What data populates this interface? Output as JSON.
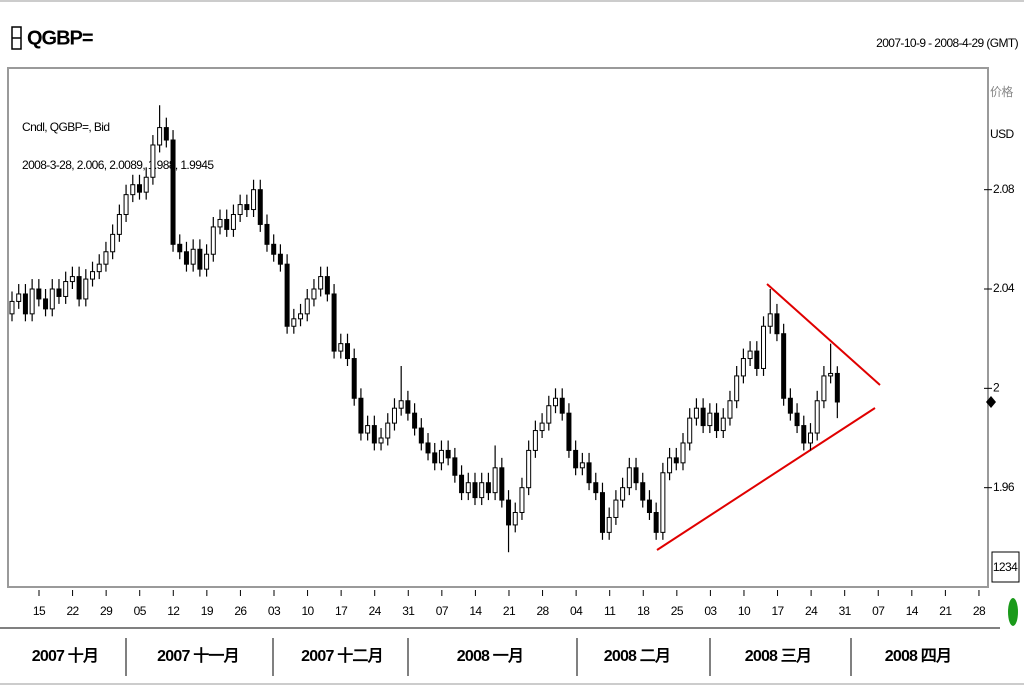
{
  "chart_data": {
    "type": "candlestick",
    "title": "QGBP=",
    "range_label": "2007-10-9 - 2008-4-29 (GMT)",
    "axis_label": "价格",
    "unit": "USD",
    "last_bar_label": "2008-3-28, 2.006, 2.0089, 1.988, 1.9945",
    "box_label": "1234",
    "ylim": [
      1.92,
      2.129
    ],
    "yticks": [
      2.08,
      2.04,
      2,
      1.96
    ],
    "x_day_labels": [
      "15",
      "22",
      "29",
      "05",
      "12",
      "19",
      "26",
      "03",
      "10",
      "17",
      "24",
      "31",
      "07",
      "14",
      "21",
      "28",
      "04",
      "11",
      "18",
      "25",
      "03",
      "10",
      "17",
      "24",
      "31",
      "07",
      "14",
      "21",
      "28"
    ],
    "x_month_labels": [
      "2007 十月",
      "2007 十一月",
      "2007 十二月",
      "2008 一月",
      "2008 二月",
      "2008 三月",
      "2008 四月"
    ],
    "series": [
      {
        "name": "Cndl, QGBP=, Bid",
        "up_color": "#ffffff",
        "down_color": "#000000",
        "open": [
          2.03,
          2.035,
          2.038,
          2.03,
          2.04,
          2.036,
          2.032,
          2.04,
          2.037,
          2.043,
          2.045,
          2.036,
          2.044,
          2.047,
          2.05,
          2.055,
          2.062,
          2.07,
          2.078,
          2.082,
          2.079,
          2.085,
          2.098,
          2.105,
          2.1,
          2.058,
          2.055,
          2.05,
          2.056,
          2.048,
          2.054,
          2.065,
          2.068,
          2.064,
          2.07,
          2.074,
          2.072,
          2.08,
          2.066,
          2.058,
          2.054,
          2.05,
          2.025,
          2.028,
          2.03,
          2.036,
          2.04,
          2.045,
          2.038,
          2.015,
          2.018,
          2.012,
          1.996,
          1.982,
          1.985,
          1.978,
          1.98,
          1.986,
          1.992,
          1.995,
          1.99,
          1.984,
          1.978,
          1.974,
          1.97,
          1.975,
          1.972,
          1.965,
          1.958,
          1.962,
          1.956,
          1.962,
          1.958,
          1.968,
          1.955,
          1.945,
          1.95,
          1.96,
          1.975,
          1.983,
          1.986,
          1.993,
          1.996,
          1.99,
          1.975,
          1.968,
          1.97,
          1.962,
          1.958,
          1.942,
          1.948,
          1.955,
          1.96,
          1.968,
          1.962,
          1.955,
          1.95,
          1.942,
          1.966,
          1.972,
          1.97,
          1.978,
          1.988,
          1.992,
          1.985,
          1.99,
          1.983,
          1.988,
          1.995,
          2.005,
          2.012,
          2.015,
          2.008,
          2.025,
          2.03,
          2.022,
          1.996,
          1.99,
          1.985,
          1.978,
          1.982,
          1.995,
          2.005,
          2.006
        ],
        "high": [
          2.039,
          2.042,
          2.042,
          2.044,
          2.044,
          2.04,
          2.044,
          2.044,
          2.047,
          2.049,
          2.049,
          2.048,
          2.051,
          2.054,
          2.059,
          2.066,
          2.074,
          2.082,
          2.086,
          2.086,
          2.089,
          2.102,
          2.114,
          2.109,
          2.104,
          2.062,
          2.059,
          2.06,
          2.06,
          2.058,
          2.069,
          2.072,
          2.072,
          2.074,
          2.078,
          2.078,
          2.084,
          2.084,
          2.07,
          2.062,
          2.058,
          2.054,
          2.032,
          2.034,
          2.04,
          2.044,
          2.049,
          2.049,
          2.042,
          2.022,
          2.022,
          2.016,
          2.0,
          1.989,
          1.989,
          1.984,
          1.99,
          1.996,
          2.009,
          1.999,
          1.994,
          1.988,
          1.982,
          1.978,
          1.979,
          1.979,
          1.976,
          1.969,
          1.966,
          1.966,
          1.966,
          1.966,
          1.977,
          1.972,
          1.959,
          1.954,
          1.964,
          1.979,
          1.987,
          1.99,
          1.997,
          2.0,
          2.0,
          1.994,
          1.979,
          1.974,
          1.974,
          1.966,
          1.962,
          1.952,
          1.959,
          1.964,
          1.972,
          1.972,
          1.966,
          1.959,
          1.954,
          1.97,
          1.976,
          1.976,
          1.982,
          1.992,
          1.996,
          1.996,
          1.994,
          1.994,
          1.992,
          1.999,
          2.009,
          2.016,
          2.019,
          2.019,
          2.029,
          2.04,
          2.034,
          2.026,
          2.0,
          1.994,
          1.989,
          1.986,
          1.999,
          2.009,
          2.018,
          2.0089
        ],
        "low": [
          2.027,
          2.032,
          2.027,
          2.027,
          2.033,
          2.029,
          2.029,
          2.034,
          2.034,
          2.04,
          2.033,
          2.033,
          2.041,
          2.044,
          2.047,
          2.052,
          2.059,
          2.067,
          2.075,
          2.076,
          2.076,
          2.082,
          2.095,
          2.097,
          2.055,
          2.052,
          2.047,
          2.047,
          2.045,
          2.045,
          2.051,
          2.062,
          2.061,
          2.061,
          2.067,
          2.069,
          2.069,
          2.063,
          2.055,
          2.051,
          2.047,
          2.022,
          2.022,
          2.025,
          2.027,
          2.033,
          2.037,
          2.035,
          2.012,
          2.012,
          2.009,
          1.993,
          1.979,
          1.979,
          1.975,
          1.975,
          1.977,
          1.983,
          1.989,
          1.987,
          1.981,
          1.975,
          1.971,
          1.967,
          1.967,
          1.969,
          1.962,
          1.955,
          1.955,
          1.953,
          1.953,
          1.955,
          1.955,
          1.952,
          1.934,
          1.942,
          1.947,
          1.957,
          1.972,
          1.98,
          1.983,
          1.99,
          1.987,
          1.972,
          1.965,
          1.965,
          1.959,
          1.955,
          1.939,
          1.939,
          1.945,
          1.952,
          1.957,
          1.959,
          1.952,
          1.947,
          1.939,
          1.939,
          1.963,
          1.967,
          1.967,
          1.975,
          1.985,
          1.982,
          1.982,
          1.98,
          1.98,
          1.985,
          1.992,
          2.002,
          2.009,
          2.005,
          2.005,
          2.022,
          2.019,
          1.993,
          1.987,
          1.982,
          1.975,
          1.975,
          1.979,
          1.992,
          2.002,
          1.988
        ],
        "close": [
          2.035,
          2.038,
          2.03,
          2.04,
          2.036,
          2.032,
          2.04,
          2.037,
          2.043,
          2.045,
          2.036,
          2.044,
          2.047,
          2.05,
          2.055,
          2.062,
          2.07,
          2.078,
          2.082,
          2.079,
          2.085,
          2.098,
          2.105,
          2.1,
          2.058,
          2.055,
          2.05,
          2.056,
          2.048,
          2.054,
          2.065,
          2.068,
          2.064,
          2.07,
          2.074,
          2.072,
          2.08,
          2.066,
          2.058,
          2.054,
          2.05,
          2.025,
          2.028,
          2.03,
          2.036,
          2.04,
          2.045,
          2.038,
          2.015,
          2.018,
          2.012,
          1.996,
          1.982,
          1.985,
          1.978,
          1.98,
          1.986,
          1.992,
          1.995,
          1.99,
          1.984,
          1.978,
          1.974,
          1.97,
          1.975,
          1.972,
          1.965,
          1.958,
          1.962,
          1.956,
          1.962,
          1.958,
          1.968,
          1.955,
          1.945,
          1.95,
          1.96,
          1.975,
          1.983,
          1.986,
          1.993,
          1.996,
          1.99,
          1.975,
          1.968,
          1.97,
          1.962,
          1.958,
          1.942,
          1.948,
          1.955,
          1.96,
          1.968,
          1.962,
          1.955,
          1.95,
          1.942,
          1.966,
          1.972,
          1.97,
          1.978,
          1.988,
          1.992,
          1.985,
          1.99,
          1.983,
          1.988,
          1.995,
          2.005,
          2.012,
          2.015,
          2.008,
          2.025,
          2.03,
          2.022,
          1.996,
          1.99,
          1.985,
          1.978,
          1.982,
          1.995,
          2.005,
          2.006,
          1.9945
        ]
      }
    ]
  }
}
